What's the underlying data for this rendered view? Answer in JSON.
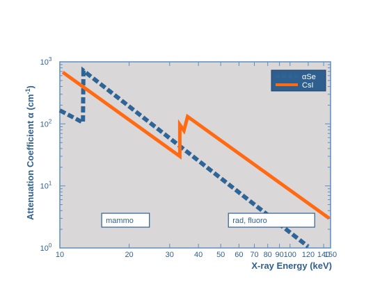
{
  "chart_data": {
    "type": "line",
    "xlabel": "X-ray Energy  (keV)",
    "ylabel": "Attenuation Coefficient α  (cm",
    "ylabel_sup": "-1",
    "ylabel_close": ")",
    "xscale": "log",
    "yscale": "log",
    "xlim": [
      10,
      150
    ],
    "ylim": [
      1,
      1000
    ],
    "x_ticks": [
      10,
      20,
      30,
      40,
      50,
      60,
      70,
      80,
      90,
      100,
      120,
      140,
      150
    ],
    "x_tick_labels": [
      "10",
      "20",
      "30",
      "40",
      "50",
      "60",
      "70",
      "80",
      "90",
      "100",
      "120",
      "140",
      "150"
    ],
    "y_ticks": [
      1,
      10,
      100,
      1000
    ],
    "y_tick_labels": [
      {
        "base": "10",
        "exp": "0"
      },
      {
        "base": "10",
        "exp": "1"
      },
      {
        "base": "10",
        "exp": "2"
      },
      {
        "base": "10",
        "exp": "3"
      }
    ],
    "grid": false,
    "legend_position": "top-right",
    "plot_background": "#d9d7d8",
    "series": [
      {
        "name": "αSe",
        "color": "#2f6497",
        "style": "dashed",
        "points": [
          [
            10,
            165
          ],
          [
            12.6,
            105
          ],
          [
            12.66,
            720
          ],
          [
            120,
            1.05
          ]
        ]
      },
      {
        "name": "CsI",
        "color": "#ff6a13",
        "style": "solid",
        "points": [
          [
            10.3,
            680
          ],
          [
            33.2,
            30
          ],
          [
            33.2,
            97
          ],
          [
            34.6,
            78
          ],
          [
            35.9,
            131
          ],
          [
            148,
            3
          ]
        ]
      }
    ],
    "annotations": [
      {
        "text": "mammo",
        "x_from": 15.2,
        "x_to": 24.5,
        "y": 2.8
      },
      {
        "text": "rad, fluoro",
        "x_from": 54,
        "x_to": 128,
        "y": 2.8
      }
    ]
  }
}
